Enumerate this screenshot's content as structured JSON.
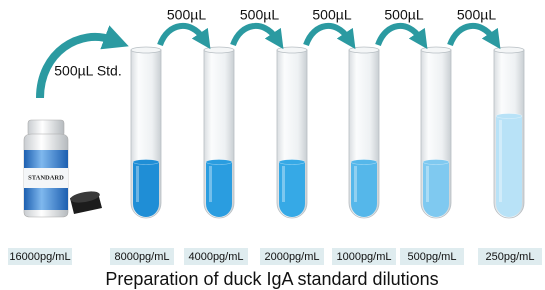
{
  "arrows": {
    "first": "500µL Std.",
    "transfers": [
      "500µL",
      "500µL",
      "500µL",
      "500µL",
      "500µL"
    ]
  },
  "bottle": {
    "label": "STANDARD"
  },
  "labels": [
    "16000pg/mL",
    "8000pg/mL",
    "4000pg/mL",
    "2000pg/mL",
    "1000pg/mL",
    "500pg/mL",
    "250pg/mL"
  ],
  "title": "Preparation of duck IgA standard dilutions"
}
